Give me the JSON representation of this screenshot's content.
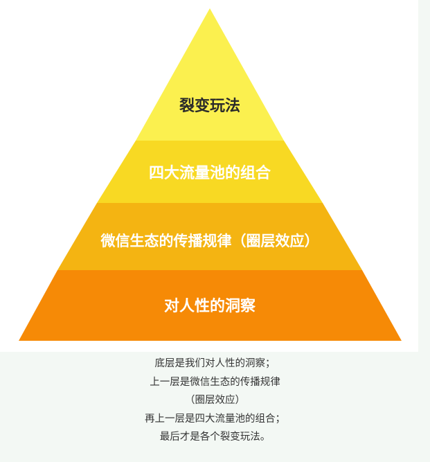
{
  "pyramid": {
    "tiers": [
      {
        "label": "裂变玩法",
        "color": "#fbf04f"
      },
      {
        "label": "四大流量池的组合",
        "color": "#f8d923"
      },
      {
        "label": "微信生态的传播规律（圈层效应）",
        "color": "#f4b412"
      },
      {
        "label": "对人性的洞察",
        "color": "#f68a06"
      }
    ]
  },
  "caption": {
    "lines": [
      "底层是我们对人性的洞察；",
      "上一层是微信生态的传播规律",
      "（圈层效应）",
      "再上一层是四大流量池的组合；",
      "最后才是各个裂变玩法。"
    ]
  }
}
